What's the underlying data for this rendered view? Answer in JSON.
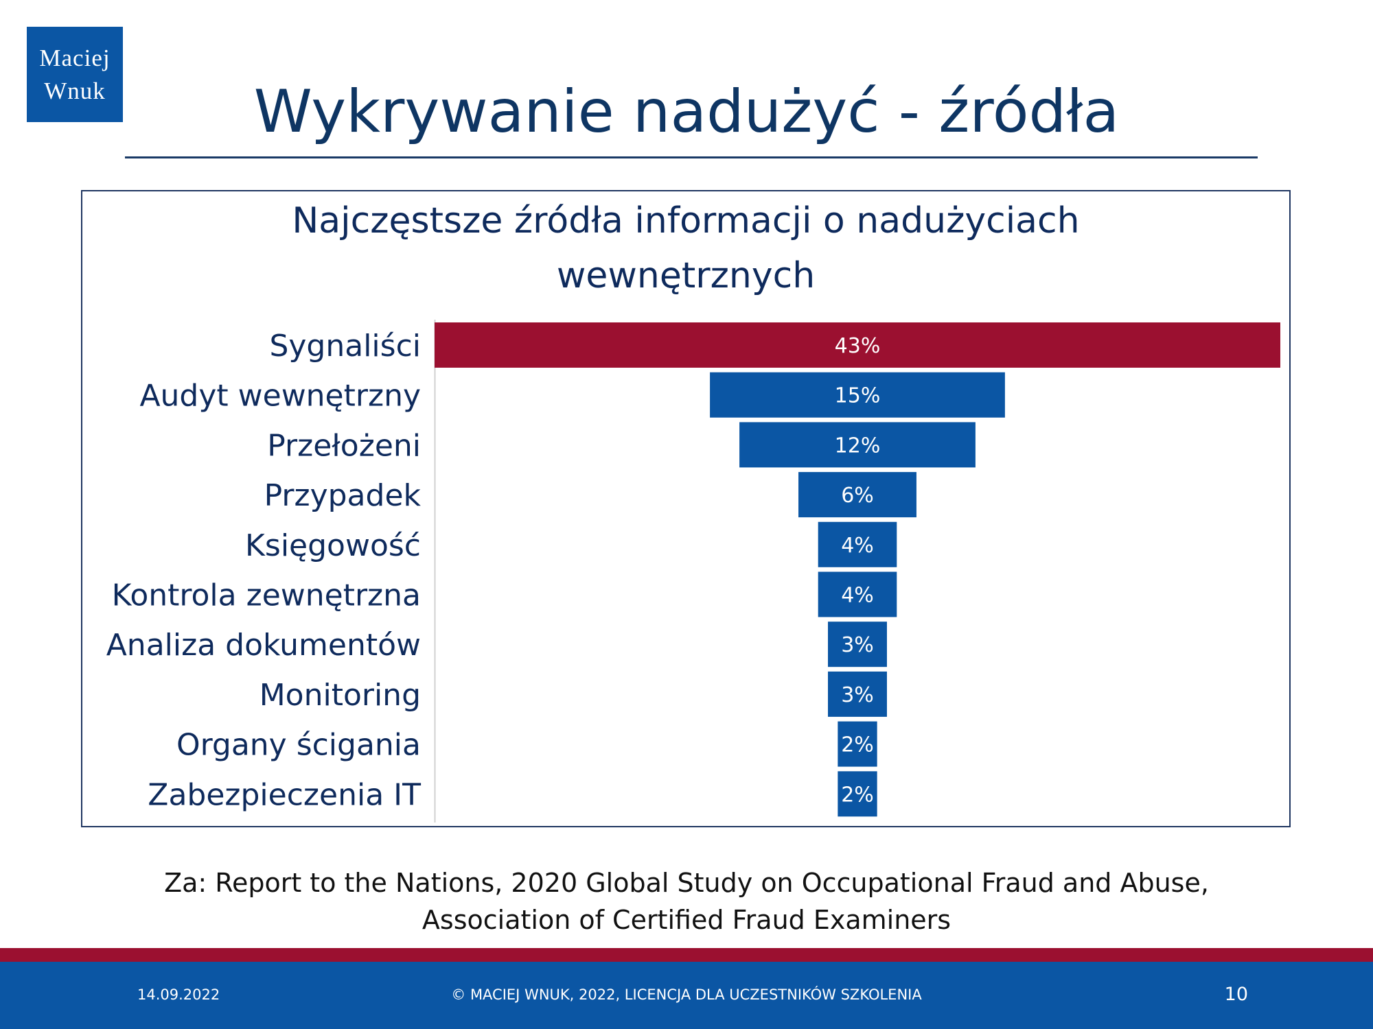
{
  "logo": {
    "line1": "Maciej",
    "line2": "Wnuk"
  },
  "slide": {
    "title": "Wykrywanie nadużyć - źródła"
  },
  "chart_data": {
    "type": "bar",
    "orientation": "horizontal-centered-funnel",
    "title_lines": [
      "Najczęstsze źródła informacji o nadużyciach",
      "wewnętrznych"
    ],
    "categories": [
      "Sygnaliści",
      "Audyt wewnętrzny",
      "Przełożeni",
      "Przypadek",
      "Księgowość",
      "Kontrola zewnętrzna",
      "Analiza dokumentów",
      "Monitoring",
      "Organy ścigania",
      "Zabezpieczenia IT"
    ],
    "values": [
      43,
      15,
      12,
      6,
      4,
      4,
      3,
      3,
      2,
      2
    ],
    "data_labels": [
      "43%",
      "15%",
      "12%",
      "6%",
      "4%",
      "4%",
      "3%",
      "3%",
      "2%",
      "2%"
    ],
    "highlight_index": 0,
    "colors": {
      "highlight": "#9b1030",
      "bar": "#0b56a4",
      "label": "#0e2a5c",
      "value_text": "#ffffff",
      "title": "#0e2a5c"
    }
  },
  "source": {
    "line1": "Za: Report to the Nations, 2020 Global Study on Occupational Fraud and Abuse,",
    "line2": "Association of Certified Fraud Examiners"
  },
  "footer": {
    "date": "14.09.2022",
    "copyright": "© MACIEJ  WNUK, 2022, LICENCJA DLA UCZESTNIKÓW SZKOLENIA",
    "page": "10"
  }
}
